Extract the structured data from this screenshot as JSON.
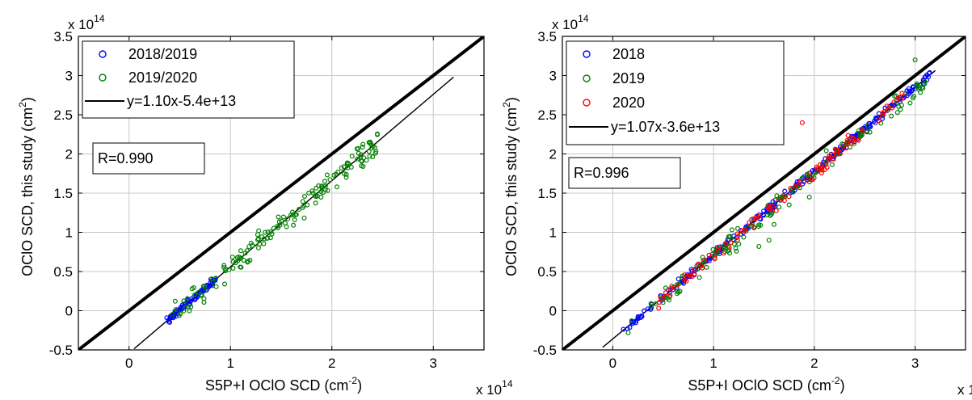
{
  "chart_data": [
    {
      "type": "scatter",
      "xlabel_main": "S5P+I OClO SCD (cm",
      "xlabel_exp": "-2",
      "xlabel_end": ")",
      "ylabel_main": "OClO SCD, this study  (cm",
      "ylabel_exp": "2",
      "ylabel_end": ")",
      "multiplier_base": "x 10",
      "multiplier_exp": "14",
      "xlim": [
        -0.5,
        3.5
      ],
      "ylim": [
        -0.5,
        3.5
      ],
      "xticks": [
        0,
        1,
        2,
        3
      ],
      "xtick_labels": [
        "0",
        "1",
        "2",
        "3"
      ],
      "yticks": [
        -0.5,
        0,
        0.5,
        1,
        1.5,
        2,
        2.5,
        3,
        3.5
      ],
      "ytick_labels": [
        "-0.5",
        "0",
        "0.5",
        "1",
        "1.5",
        "2",
        "2.5",
        "3",
        "3.5"
      ],
      "grid": true,
      "legend_position": "top-left",
      "series": [
        {
          "name": "2018/2019",
          "color": "#0000ff",
          "x_range": [
            0.37,
            0.85
          ],
          "slope": 1.1,
          "intercept": -0.54,
          "noise": 0.03,
          "count": 90
        },
        {
          "name": "2019/2020",
          "color": "#008000",
          "x_range": [
            0.4,
            2.45
          ],
          "slope": 1.1,
          "intercept": -0.54,
          "noise": 0.09,
          "count": 160
        }
      ],
      "fit": {
        "label": "y=1.10x-5.4e+13",
        "slope": 1.1,
        "intercept": -0.54,
        "x_range": [
          0.05,
          3.2
        ]
      },
      "identity_line": true,
      "r_label": "R=0.990"
    },
    {
      "type": "scatter",
      "xlabel_main": "S5P+I OClO SCD (cm",
      "xlabel_exp": "-2",
      "xlabel_end": ")",
      "ylabel_main": "OClO SCD, this study  (cm",
      "ylabel_exp": "2",
      "ylabel_end": ")",
      "multiplier_base": "x 10",
      "multiplier_exp": "14",
      "xlim": [
        -0.5,
        3.5
      ],
      "ylim": [
        -0.5,
        3.5
      ],
      "xticks": [
        0,
        1,
        2,
        3
      ],
      "xtick_labels": [
        "0",
        "1",
        "2",
        "3"
      ],
      "yticks": [
        -0.5,
        0,
        0.5,
        1,
        1.5,
        2,
        2.5,
        3,
        3.5
      ],
      "ytick_labels": [
        "-0.5",
        "0",
        "0.5",
        "1",
        "1.5",
        "2",
        "2.5",
        "3",
        "3.5"
      ],
      "grid": true,
      "legend_position": "top-left",
      "series": [
        {
          "name": "2018",
          "color": "#0000ff",
          "x_range": [
            0.1,
            3.15
          ],
          "slope": 1.07,
          "intercept": -0.36,
          "noise": 0.03,
          "count": 260
        },
        {
          "name": "2019",
          "color": "#008000",
          "x_range": [
            0.15,
            3.1
          ],
          "slope": 1.07,
          "intercept": -0.38,
          "noise": 0.08,
          "count": 140
        },
        {
          "name": "2020",
          "color": "#ff0000",
          "x_range": [
            0.4,
            2.9
          ],
          "slope": 1.07,
          "intercept": -0.36,
          "noise": 0.05,
          "count": 110
        }
      ],
      "outliers": [
        {
          "series": "2020",
          "x": 1.88,
          "y": 2.4
        },
        {
          "series": "2019",
          "x": 1.25,
          "y": 0.85
        },
        {
          "series": "2019",
          "x": 1.45,
          "y": 0.82
        },
        {
          "series": "2019",
          "x": 1.55,
          "y": 0.9
        },
        {
          "series": "2019",
          "x": 1.6,
          "y": 1.1
        },
        {
          "series": "2019",
          "x": 1.75,
          "y": 1.35
        },
        {
          "series": "2019",
          "x": 1.95,
          "y": 1.45
        },
        {
          "series": "2019",
          "x": 3.0,
          "y": 3.2
        },
        {
          "series": "2019",
          "x": 2.95,
          "y": 2.65
        }
      ],
      "fit": {
        "label": "y=1.07x-3.6e+13",
        "slope": 1.07,
        "intercept": -0.36,
        "x_range": [
          -0.1,
          3.2
        ]
      },
      "identity_line": true,
      "r_label": "R=0.996"
    }
  ]
}
